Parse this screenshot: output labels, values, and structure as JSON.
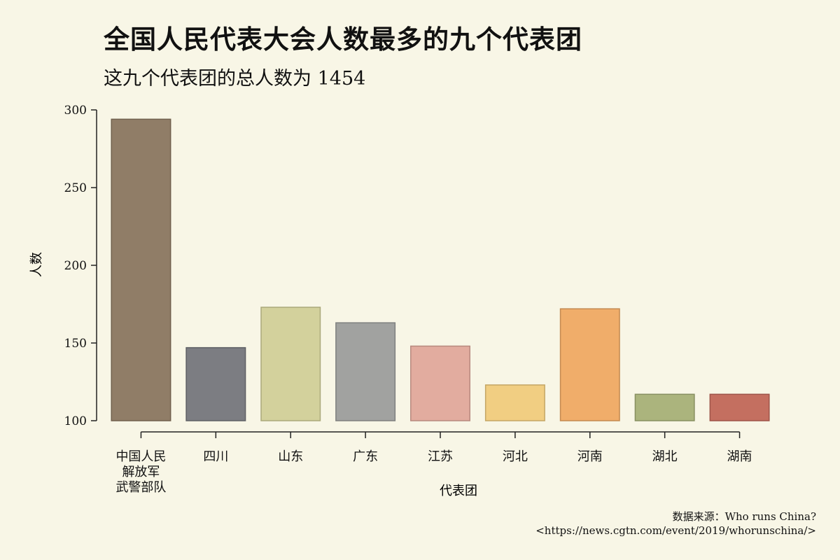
{
  "chart_data": {
    "type": "bar",
    "title": "全国人民代表大会人数最多的九个代表团",
    "subtitle": "这九个代表团的总人数为 1454",
    "xlabel": "代表团",
    "ylabel": "人数",
    "ylim": [
      100,
      300
    ],
    "yticks": [
      "100",
      "150",
      "200",
      "250",
      "300"
    ],
    "categories": [
      "中国人民\n解放军\n武警部队",
      "四川",
      "山东",
      "广东",
      "江苏",
      "河北",
      "河南",
      "湖北",
      "湖南"
    ],
    "values": [
      294,
      147,
      173,
      163,
      148,
      123,
      172,
      117,
      117
    ],
    "colors": [
      "#8a7660",
      "#75767c",
      "#d1cf98",
      "#9c9d9c",
      "#e0a89b",
      "#f0cb7c",
      "#efa963",
      "#a6b077",
      "#c16759"
    ],
    "grid": false
  },
  "source": {
    "line1": "数据来源：Who runs China?",
    "line2": "<https://news.cgtn.com/event/2019/whorunschina/>"
  }
}
